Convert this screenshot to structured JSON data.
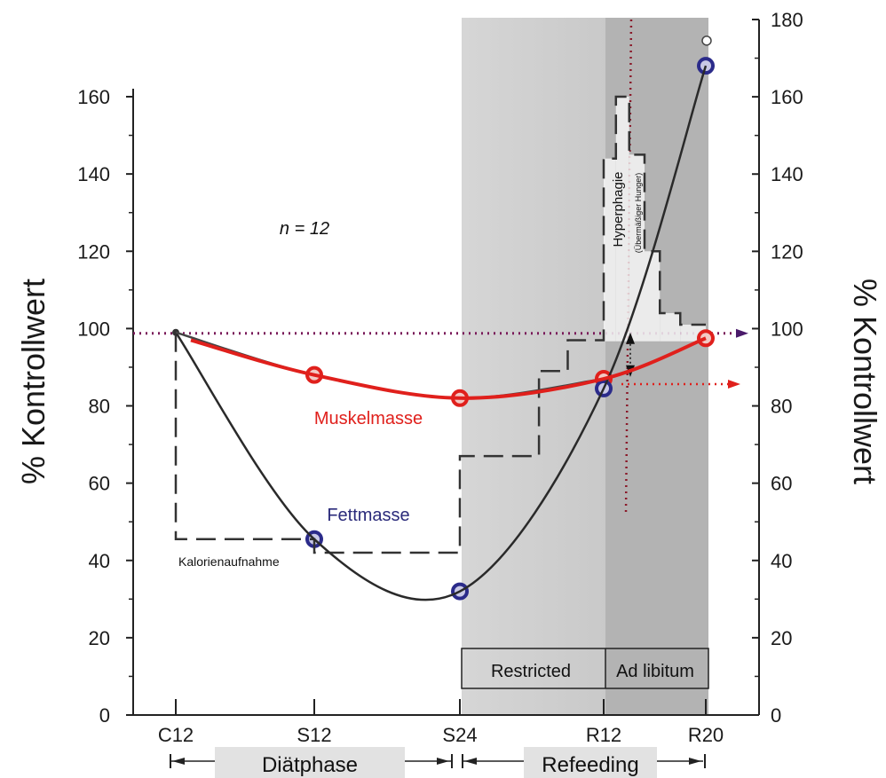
{
  "chart_data": {
    "type": "line",
    "categories": [
      "C12",
      "S12",
      "S24",
      "R12",
      "R20"
    ],
    "ylabel_left": "% Kontrollwert",
    "ylabel_right": "% Kontrollwert",
    "ylim_left": [
      0,
      160
    ],
    "ylim_right": [
      0,
      180
    ],
    "yticks_left": [
      0,
      20,
      40,
      60,
      80,
      100,
      120,
      140,
      160
    ],
    "yticks_right": [
      0,
      20,
      40,
      60,
      80,
      100,
      120,
      140,
      160,
      180
    ],
    "series": [
      {
        "name": "Muskelmasse",
        "color": "#e0201c",
        "values": [
          99,
          88,
          82,
          87,
          97.5
        ]
      },
      {
        "name": "Fettmasse",
        "color": "#2a2a7a",
        "values": [
          99,
          45.5,
          32,
          84.5,
          168
        ]
      },
      {
        "name": "Kalorienaufnahme",
        "color": "#333333",
        "steps": [
          {
            "x_from": 0,
            "x_to": 1,
            "y": 45.5
          },
          {
            "x_from": 1,
            "x_to": 2,
            "y": 42
          },
          {
            "x_from": 2,
            "x_to": 2.55,
            "y": 67
          },
          {
            "x_from": 2.55,
            "x_to": 2.75,
            "y": 89
          },
          {
            "x_from": 2.75,
            "x_to": 3.0,
            "y": 97
          },
          {
            "x_from": 3.0,
            "x_to": 3.12,
            "y": 144
          },
          {
            "x_from": 3.12,
            "x_to": 3.25,
            "y": 160
          },
          {
            "x_from": 3.25,
            "x_to": 3.4,
            "y": 145
          },
          {
            "x_from": 3.4,
            "x_to": 3.55,
            "y": 120
          },
          {
            "x_from": 3.55,
            "x_to": 3.75,
            "y": 104
          },
          {
            "x_from": 3.75,
            "x_to": 4.0,
            "y": 101
          }
        ]
      }
    ],
    "reference_line": 99,
    "annotations": {
      "n": "n = 12",
      "muscle": "Muskelmasse",
      "fat": "Fettmasse",
      "calories": "Kalorienaufnahme",
      "hyperphagia": "Hyperphagie",
      "hyperphagia_sub": "(Übermäßiger Hunger)",
      "restricted": "Restricted",
      "ad_libitum": "Ad libitum",
      "phase_diet": "Diätphase",
      "phase_refeeding": "Refeeding"
    }
  }
}
